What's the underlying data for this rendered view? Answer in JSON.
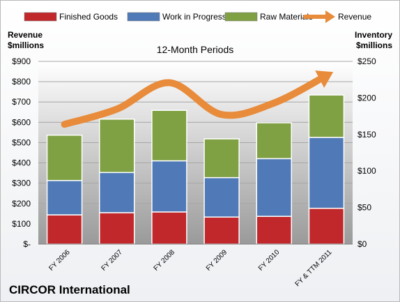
{
  "colors": {
    "finished_goods": "#c0282b",
    "work_in_progress": "#4f7ab7",
    "raw_materials": "#7fa043",
    "revenue": "#e88b3a"
  },
  "legend": [
    {
      "label": "Finished Goods",
      "color_key": "finished_goods",
      "shape": "swatch"
    },
    {
      "label": "Work in Progress",
      "color_key": "work_in_progress",
      "shape": "swatch"
    },
    {
      "label": "Raw Materials",
      "color_key": "raw_materials",
      "shape": "swatch"
    },
    {
      "label": "Revenue",
      "color_key": "revenue",
      "shape": "arrow"
    }
  ],
  "chart_data": {
    "type": "bar",
    "subtitle": "12-Month Periods",
    "footer": "CIRCOR International",
    "left_axis": {
      "title_lines": [
        "Revenue",
        "$millions"
      ],
      "range": [
        0,
        900
      ],
      "ticks": [
        0,
        100,
        200,
        300,
        400,
        500,
        600,
        700,
        800,
        900
      ],
      "tick_labels": [
        "$-",
        "$100",
        "$200",
        "$300",
        "$400",
        "$500",
        "$600",
        "$700",
        "$800",
        "$900"
      ]
    },
    "right_axis": {
      "title_lines": [
        "Inventory",
        "$millions"
      ],
      "range": [
        0,
        250
      ],
      "ticks": [
        0,
        50,
        100,
        150,
        200,
        250
      ],
      "tick_labels": [
        "$0",
        "$50",
        "$100",
        "$150",
        "$200",
        "$250"
      ]
    },
    "categories": [
      "FY 2006",
      "FY 2007",
      "FY 2008",
      "FY 2009",
      "FY 2010",
      "FY & TTM 2011"
    ],
    "series": [
      {
        "name": "Finished Goods",
        "kind": "stacked-bar",
        "axis": "right",
        "color_key": "finished_goods",
        "values": [
          40,
          43,
          44,
          37,
          38,
          49
        ]
      },
      {
        "name": "Work in Progress",
        "kind": "stacked-bar",
        "axis": "right",
        "color_key": "work_in_progress",
        "values": [
          47,
          55,
          70,
          54,
          79,
          97
        ]
      },
      {
        "name": "Raw Materials",
        "kind": "stacked-bar",
        "axis": "right",
        "color_key": "raw_materials",
        "values": [
          62,
          73,
          69,
          53,
          49,
          58
        ]
      },
      {
        "name": "Revenue",
        "kind": "line-arrow",
        "axis": "left",
        "color_key": "revenue",
        "values": [
          590,
          665,
          795,
          638,
          695,
          830
        ]
      }
    ],
    "grid": true,
    "legend_position": "top"
  }
}
